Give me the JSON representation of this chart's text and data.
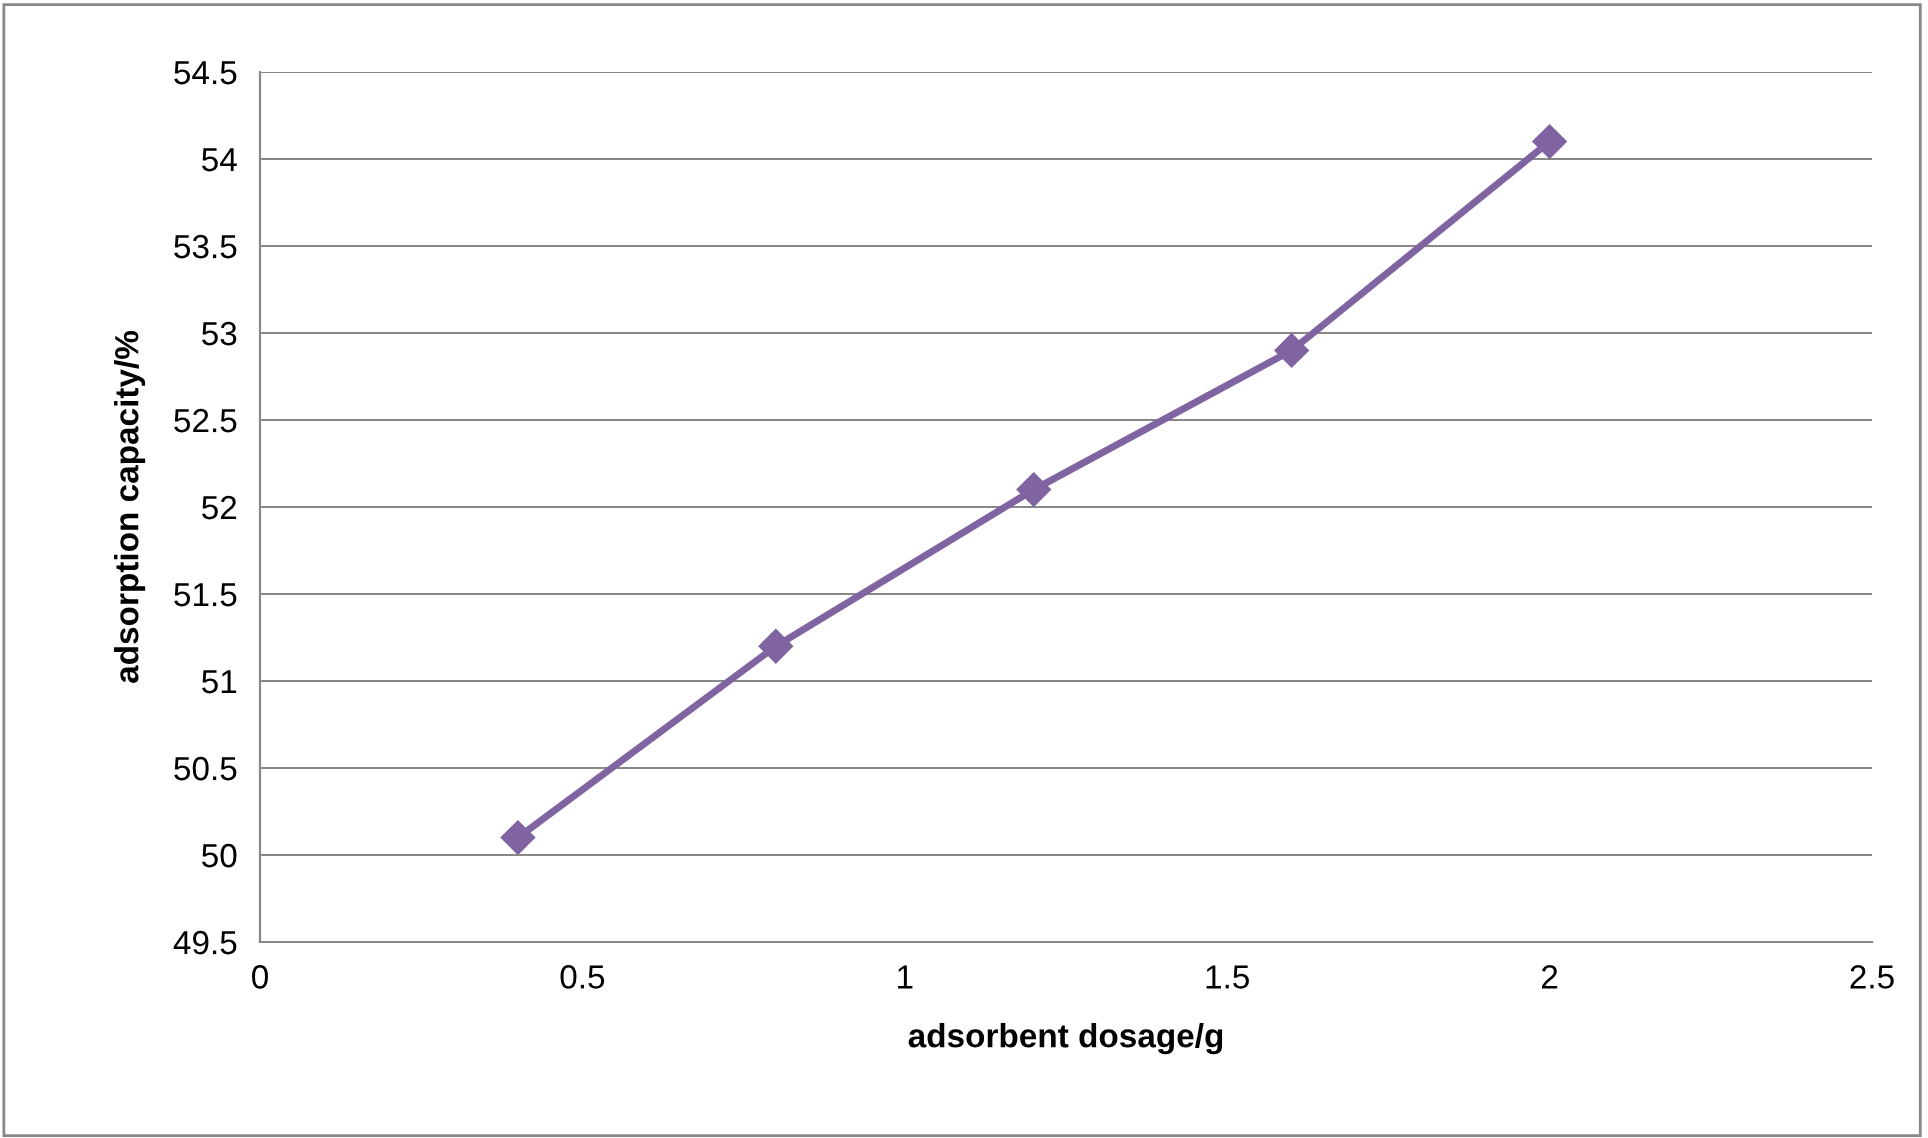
{
  "chart_data": {
    "type": "line",
    "xlabel": "adsorbent dosage/g",
    "ylabel": "adsorption capacity/%",
    "x": [
      0.4,
      0.8,
      1.2,
      1.6,
      2.0
    ],
    "series": [
      {
        "color": "#8064a2",
        "values": [
          50.1,
          51.2,
          52.1,
          52.9,
          54.1
        ]
      }
    ],
    "xlim": [
      0,
      2.5
    ],
    "xticks": [
      0,
      0.5,
      1,
      1.5,
      2,
      2.5
    ],
    "ylim": [
      49.5,
      54.5
    ],
    "yticks": [
      49.5,
      50,
      50.5,
      51,
      51.5,
      52,
      52.5,
      53,
      53.5,
      54,
      54.5
    ],
    "grid": "y",
    "marker": "diamond",
    "line_style": "solid",
    "legend": false
  }
}
